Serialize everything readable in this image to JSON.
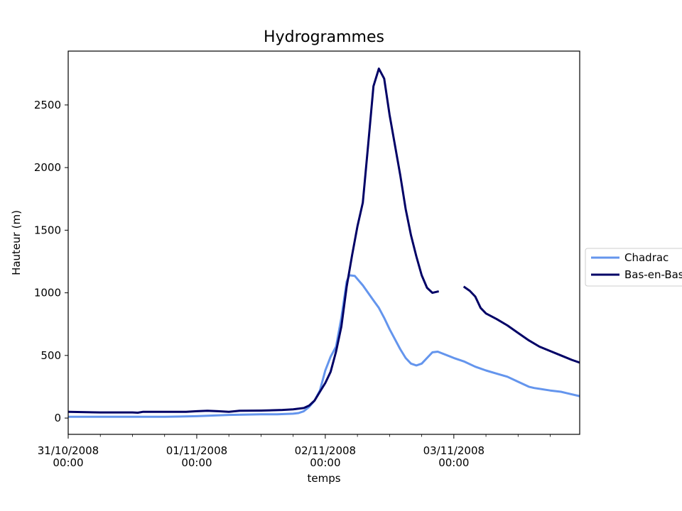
{
  "chart_data": {
    "type": "line",
    "title": "Hydrogrammes",
    "xlabel": "temps",
    "ylabel": "Hauteur (m)",
    "xlim": [
      "2008-10-31 00:00",
      "2008-11-03 23:30"
    ],
    "ylim": [
      -130,
      2930
    ],
    "y_ticks": [
      0,
      500,
      1000,
      1500,
      2000,
      2500
    ],
    "x_ticks": [
      {
        "value": "2008-10-31 00:00",
        "label_date": "31/10/2008",
        "label_time": "00:00"
      },
      {
        "value": "2008-11-01 00:00",
        "label_date": "01/11/2008",
        "label_time": "00:00"
      },
      {
        "value": "2008-11-02 00:00",
        "label_date": "02/11/2008",
        "label_time": "00:00"
      },
      {
        "value": "2008-11-03 00:00",
        "label_date": "03/11/2008",
        "label_time": "00:00"
      }
    ],
    "x_minor_ticks": [
      "2008-10-31 06:00",
      "2008-10-31 12:00",
      "2008-10-31 18:00",
      "2008-11-01 06:00",
      "2008-11-01 12:00",
      "2008-11-01 18:00",
      "2008-11-02 06:00",
      "2008-11-02 12:00",
      "2008-11-02 18:00",
      "2008-11-03 06:00",
      "2008-11-03 12:00",
      "2008-11-03 18:00"
    ],
    "legend": {
      "placement": "right-outside"
    },
    "series": [
      {
        "name": "Chadrac",
        "color": "#6495ED",
        "points": [
          [
            "2008-10-31 00:00",
            10
          ],
          [
            "2008-10-31 06:00",
            10
          ],
          [
            "2008-10-31 12:00",
            10
          ],
          [
            "2008-10-31 18:00",
            10
          ],
          [
            "2008-11-01 00:00",
            15
          ],
          [
            "2008-11-01 06:00",
            25
          ],
          [
            "2008-11-01 12:00",
            30
          ],
          [
            "2008-11-01 15:00",
            30
          ],
          [
            "2008-11-01 18:00",
            35
          ],
          [
            "2008-11-01 19:00",
            40
          ],
          [
            "2008-11-01 20:00",
            55
          ],
          [
            "2008-11-01 21:00",
            90
          ],
          [
            "2008-11-01 22:00",
            140
          ],
          [
            "2008-11-01 23:00",
            220
          ],
          [
            "2008-11-02 00:00",
            380
          ],
          [
            "2008-11-02 01:00",
            490
          ],
          [
            "2008-11-02 02:00",
            570
          ],
          [
            "2008-11-02 03:00",
            800
          ],
          [
            "2008-11-02 04:00",
            1090
          ],
          [
            "2008-11-02 04:30",
            1140
          ],
          [
            "2008-11-02 05:30",
            1135
          ],
          [
            "2008-11-02 07:00",
            1060
          ],
          [
            "2008-11-02 08:00",
            1000
          ],
          [
            "2008-11-02 09:00",
            940
          ],
          [
            "2008-11-02 10:00",
            880
          ],
          [
            "2008-11-02 11:00",
            800
          ],
          [
            "2008-11-02 12:00",
            710
          ],
          [
            "2008-11-02 13:00",
            630
          ],
          [
            "2008-11-02 14:00",
            550
          ],
          [
            "2008-11-02 15:00",
            480
          ],
          [
            "2008-11-02 16:00",
            435
          ],
          [
            "2008-11-02 17:00",
            420
          ],
          [
            "2008-11-02 18:00",
            435
          ],
          [
            "2008-11-02 19:00",
            480
          ],
          [
            "2008-11-02 20:00",
            525
          ],
          [
            "2008-11-02 21:00",
            530
          ],
          [
            "2008-11-03 00:00",
            480
          ],
          [
            "2008-11-03 02:00",
            450
          ],
          [
            "2008-11-03 04:00",
            410
          ],
          [
            "2008-11-03 06:00",
            380
          ],
          [
            "2008-11-03 08:00",
            355
          ],
          [
            "2008-11-03 10:00",
            330
          ],
          [
            "2008-11-03 12:00",
            290
          ],
          [
            "2008-11-03 14:00",
            250
          ],
          [
            "2008-11-03 15:00",
            240
          ],
          [
            "2008-11-03 18:00",
            220
          ],
          [
            "2008-11-03 19:00",
            215
          ],
          [
            "2008-11-03 20:00",
            210
          ],
          [
            "2008-11-03 21:00",
            200
          ],
          [
            "2008-11-03 23:30",
            175
          ]
        ]
      },
      {
        "name": "Bas-en-Basset",
        "color": "#000066",
        "points": [
          [
            "2008-10-31 00:00",
            50
          ],
          [
            "2008-10-31 06:00",
            45
          ],
          [
            "2008-10-31 10:00",
            45
          ],
          [
            "2008-10-31 12:00",
            45
          ],
          [
            "2008-10-31 13:00",
            43
          ],
          [
            "2008-10-31 14:00",
            50
          ],
          [
            "2008-10-31 18:00",
            50
          ],
          [
            "2008-10-31 22:00",
            50
          ],
          [
            "2008-11-01 00:00",
            55
          ],
          [
            "2008-11-01 02:00",
            58
          ],
          [
            "2008-11-01 04:00",
            55
          ],
          [
            "2008-11-01 06:00",
            50
          ],
          [
            "2008-11-01 08:00",
            58
          ],
          [
            "2008-11-01 12:00",
            60
          ],
          [
            "2008-11-01 16:00",
            65
          ],
          [
            "2008-11-01 18:00",
            70
          ],
          [
            "2008-11-01 20:00",
            80
          ],
          [
            "2008-11-01 21:00",
            100
          ],
          [
            "2008-11-01 22:00",
            140
          ],
          [
            "2008-11-01 23:00",
            210
          ],
          [
            "2008-11-02 00:00",
            280
          ],
          [
            "2008-11-02 01:00",
            370
          ],
          [
            "2008-11-02 02:00",
            530
          ],
          [
            "2008-11-02 03:00",
            730
          ],
          [
            "2008-11-02 04:00",
            1050
          ],
          [
            "2008-11-02 05:00",
            1300
          ],
          [
            "2008-11-02 06:00",
            1530
          ],
          [
            "2008-11-02 07:00",
            1720
          ],
          [
            "2008-11-02 08:00",
            2180
          ],
          [
            "2008-11-02 09:00",
            2650
          ],
          [
            "2008-11-02 10:00",
            2790
          ],
          [
            "2008-11-02 11:00",
            2710
          ],
          [
            "2008-11-02 12:00",
            2420
          ],
          [
            "2008-11-02 13:00",
            2180
          ],
          [
            "2008-11-02 14:00",
            1940
          ],
          [
            "2008-11-02 15:00",
            1670
          ],
          [
            "2008-11-02 16:00",
            1460
          ],
          [
            "2008-11-02 17:00",
            1290
          ],
          [
            "2008-11-02 18:00",
            1140
          ],
          [
            "2008-11-02 19:00",
            1040
          ],
          [
            "2008-11-02 20:00",
            1000
          ],
          [
            "2008-11-02 21:00",
            1010
          ],
          null,
          [
            "2008-11-03 02:00",
            1045
          ],
          [
            "2008-11-03 03:00",
            1015
          ],
          [
            "2008-11-03 04:00",
            970
          ],
          [
            "2008-11-03 05:00",
            880
          ],
          [
            "2008-11-03 06:00",
            835
          ],
          [
            "2008-11-03 08:00",
            790
          ],
          [
            "2008-11-03 10:00",
            740
          ],
          [
            "2008-11-03 12:00",
            680
          ],
          [
            "2008-11-03 14:00",
            620
          ],
          [
            "2008-11-03 16:00",
            570
          ],
          [
            "2008-11-03 18:00",
            535
          ],
          [
            "2008-11-03 20:00",
            500
          ],
          [
            "2008-11-03 22:00",
            465
          ],
          [
            "2008-11-04 00:00",
            435
          ],
          [
            "2008-11-04 02:00",
            415
          ]
        ]
      }
    ]
  }
}
